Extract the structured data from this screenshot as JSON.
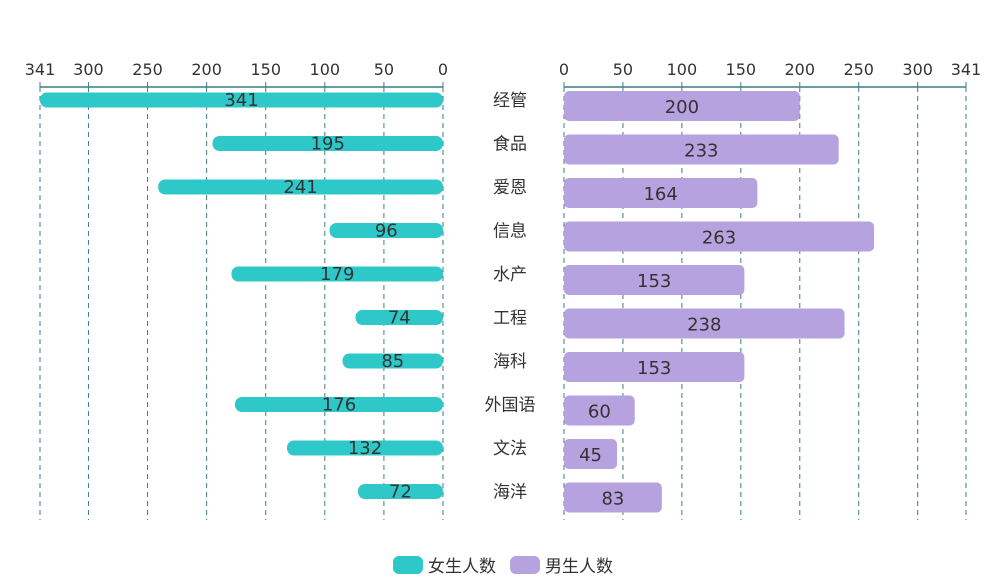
{
  "chart_data": {
    "type": "bar",
    "orientation": "horizontal-butterfly",
    "categories": [
      "经管",
      "食品",
      "爱恩",
      "信息",
      "水产",
      "工程",
      "海科",
      "外国语",
      "文法",
      "海洋"
    ],
    "series": [
      {
        "name": "女生人数",
        "values": [
          341,
          195,
          241,
          96,
          179,
          74,
          85,
          176,
          132,
          72
        ],
        "color": "#2ec8c8",
        "side": "left"
      },
      {
        "name": "男生人数",
        "values": [
          200,
          233,
          164,
          263,
          153,
          238,
          153,
          60,
          45,
          83
        ],
        "color": "#b6a2de",
        "side": "right"
      }
    ],
    "left_axis": {
      "ticks": [
        "341",
        "300",
        "250",
        "200",
        "150",
        "100",
        "50",
        "0"
      ],
      "max": 341,
      "reversed": true
    },
    "right_axis": {
      "ticks": [
        "0",
        "50",
        "100",
        "150",
        "200",
        "250",
        "300",
        "341"
      ],
      "max": 341
    },
    "grid": true,
    "legend_position": "bottom-center"
  }
}
